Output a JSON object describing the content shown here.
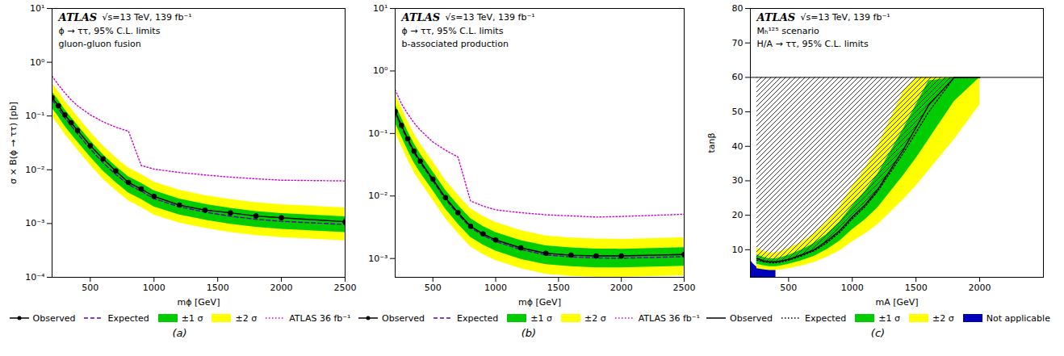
{
  "chart_data": [
    {
      "type": "line",
      "title": "(a)",
      "xlabel": "mϕ [GeV]",
      "ylabel": "σ × B(ϕ → ττ) [pb]",
      "annotations": [
        "ATLAS",
        "√s=13 TeV, 139 fb⁻¹",
        "ϕ → ττ, 95% C.L. limits",
        "gluon-gluon fusion"
      ],
      "log": "y",
      "legend": "bottom",
      "xlim": [
        200,
        2500
      ],
      "xticks": [
        500,
        1000,
        1500,
        2000,
        2500
      ],
      "ylim": [
        0.0001,
        10
      ],
      "yticks": [
        {
          "value": 0.0001,
          "label": "10⁻⁴"
        },
        {
          "value": 0.001,
          "label": "10⁻³"
        },
        {
          "value": 0.01,
          "label": "10⁻²"
        },
        {
          "value": 0.1,
          "label": "10⁻¹"
        },
        {
          "value": 1,
          "label": "10⁰"
        },
        {
          "value": 10,
          "label": "10¹"
        }
      ],
      "series": [
        {
          "name": "Observed",
          "type": "line",
          "color": "black",
          "line_style": "solid",
          "marker": "circle",
          "x": [
            200,
            250,
            300,
            350,
            400,
            500,
            600,
            700,
            800,
            900,
            1000,
            1200,
            1400,
            1600,
            1800,
            2000,
            2500
          ],
          "values": [
            0.22,
            0.155,
            0.105,
            0.075,
            0.054,
            0.028,
            0.016,
            0.0095,
            0.0058,
            0.0044,
            0.0032,
            0.0022,
            0.00178,
            0.00158,
            0.00138,
            0.00128,
            0.00108
          ]
        },
        {
          "name": "Expected",
          "type": "line",
          "color": "#6600AA",
          "line_style": "dashed",
          "x": [
            200,
            250,
            300,
            350,
            400,
            500,
            600,
            700,
            800,
            900,
            1000,
            1200,
            1400,
            1600,
            1800,
            2000,
            2500
          ],
          "values": [
            0.2,
            0.138,
            0.093,
            0.066,
            0.047,
            0.0245,
            0.0135,
            0.0082,
            0.0053,
            0.004,
            0.0029,
            0.00205,
            0.00163,
            0.00137,
            0.0012,
            0.0011,
            0.00096
          ]
        },
        {
          "name": "±1 σ",
          "type": "band",
          "color": "#00CC00",
          "x": [
            200,
            250,
            300,
            350,
            400,
            500,
            600,
            700,
            800,
            900,
            1000,
            1200,
            1400,
            1600,
            1800,
            2000,
            2500
          ],
          "lower": [
            0.14,
            0.097,
            0.065,
            0.046,
            0.033,
            0.0172,
            0.0095,
            0.0058,
            0.0037,
            0.0028,
            0.00205,
            0.00145,
            0.00116,
            0.00097,
            0.00085,
            0.00078,
            0.00068
          ],
          "upper": [
            0.285,
            0.196,
            0.132,
            0.094,
            0.067,
            0.0348,
            0.0192,
            0.0116,
            0.0074,
            0.0056,
            0.00406,
            0.00286,
            0.00228,
            0.00192,
            0.00168,
            0.00154,
            0.00134
          ]
        },
        {
          "name": "±2 σ",
          "type": "band",
          "color": "#FFFF00",
          "x": [
            200,
            250,
            300,
            350,
            400,
            500,
            600,
            700,
            800,
            900,
            1000,
            1200,
            1400,
            1600,
            1800,
            2000,
            2500
          ],
          "lower": [
            0.098,
            0.068,
            0.046,
            0.033,
            0.0234,
            0.0122,
            0.0067,
            0.0041,
            0.00264,
            0.00199,
            0.00145,
            0.00102,
            0.00082,
            0.00068,
            0.0006,
            0.00055,
            0.00048
          ],
          "upper": [
            0.41,
            0.283,
            0.19,
            0.136,
            0.097,
            0.0503,
            0.0277,
            0.0168,
            0.0108,
            0.0082,
            0.00591,
            0.00417,
            0.00332,
            0.0028,
            0.00245,
            0.00225,
            0.00196
          ]
        },
        {
          "name": "ATLAS 36 fb⁻¹",
          "type": "line",
          "color": "#CC00CC",
          "line_style": "dotted",
          "x": [
            200,
            250,
            300,
            350,
            400,
            500,
            600,
            700,
            800,
            900,
            1000,
            1200,
            1400,
            1600,
            1800,
            2000,
            2500
          ],
          "values": [
            0.55,
            0.38,
            0.27,
            0.2,
            0.155,
            0.105,
            0.078,
            0.062,
            0.052,
            0.012,
            0.0103,
            0.0089,
            0.008,
            0.0073,
            0.0068,
            0.0064,
            0.0062
          ]
        }
      ]
    },
    {
      "type": "line",
      "title": "(b)",
      "xlabel": "mϕ [GeV]",
      "annotations": [
        "ATLAS",
        "√s=13 TeV, 139 fb⁻¹",
        "ϕ → ττ, 95% C.L. limits",
        "b-associated production"
      ],
      "log": "y",
      "legend": "bottom",
      "xlim": [
        200,
        2500
      ],
      "xticks": [
        500,
        1000,
        1500,
        2000,
        2500
      ],
      "ylim": [
        0.0005,
        10
      ],
      "yticks": [
        {
          "value": 0.001,
          "label": "10⁻³"
        },
        {
          "value": 0.01,
          "label": "10⁻²"
        },
        {
          "value": 0.1,
          "label": "10⁻¹"
        },
        {
          "value": 1,
          "label": "10⁰"
        },
        {
          "value": 10,
          "label": "10¹"
        }
      ],
      "series": [
        {
          "name": "Observed",
          "type": "line",
          "color": "black",
          "line_style": "solid",
          "marker": "circle",
          "x": [
            200,
            250,
            300,
            350,
            400,
            500,
            600,
            700,
            800,
            900,
            1000,
            1200,
            1400,
            1600,
            1800,
            2000,
            2500
          ],
          "values": [
            0.225,
            0.135,
            0.082,
            0.052,
            0.036,
            0.0185,
            0.0094,
            0.0054,
            0.00328,
            0.00247,
            0.00198,
            0.00148,
            0.00121,
            0.00113,
            0.0011,
            0.0011,
            0.00116
          ]
        },
        {
          "name": "Expected",
          "type": "line",
          "color": "#6600AA",
          "line_style": "dashed",
          "x": [
            200,
            250,
            300,
            350,
            400,
            500,
            600,
            700,
            800,
            900,
            1000,
            1200,
            1400,
            1600,
            1800,
            2000,
            2500
          ],
          "values": [
            0.21,
            0.127,
            0.077,
            0.049,
            0.034,
            0.0175,
            0.0089,
            0.0051,
            0.00312,
            0.00234,
            0.00187,
            0.00139,
            0.00114,
            0.00106,
            0.00102,
            0.00101,
            0.00107
          ]
        },
        {
          "name": "±1 σ",
          "type": "band",
          "color": "#00CC00",
          "x": [
            200,
            250,
            300,
            350,
            400,
            500,
            600,
            700,
            800,
            900,
            1000,
            1200,
            1400,
            1600,
            1800,
            2000,
            2500
          ],
          "lower": [
            0.148,
            0.089,
            0.054,
            0.034,
            0.0236,
            0.0122,
            0.0062,
            0.00357,
            0.00218,
            0.00164,
            0.00131,
            0.00097,
            0.0008,
            0.00074,
            0.00071,
            0.00071,
            0.00075
          ],
          "upper": [
            0.295,
            0.178,
            0.108,
            0.069,
            0.047,
            0.0244,
            0.0124,
            0.00714,
            0.00435,
            0.00326,
            0.00261,
            0.00194,
            0.00159,
            0.00148,
            0.00142,
            0.00141,
            0.00149
          ]
        },
        {
          "name": "±2 σ",
          "type": "band",
          "color": "#FFFF00",
          "x": [
            200,
            250,
            300,
            350,
            400,
            500,
            600,
            700,
            800,
            900,
            1000,
            1200,
            1400,
            1600,
            1800,
            2000,
            2500
          ],
          "lower": [
            0.104,
            0.063,
            0.038,
            0.024,
            0.0167,
            0.0086,
            0.0044,
            0.00252,
            0.00154,
            0.00116,
            0.00093,
            0.00069,
            0.00056,
            0.00052,
            0.0005,
            0.0005,
            0.00053
          ],
          "upper": [
            0.427,
            0.257,
            0.156,
            0.099,
            0.068,
            0.0352,
            0.0179,
            0.0103,
            0.00628,
            0.00471,
            0.00377,
            0.0028,
            0.0023,
            0.00213,
            0.00205,
            0.00203,
            0.00215
          ]
        },
        {
          "name": "ATLAS 36 fb⁻¹",
          "type": "line",
          "color": "#CC00CC",
          "line_style": "dotted",
          "x": [
            200,
            250,
            300,
            350,
            400,
            500,
            600,
            700,
            800,
            900,
            1000,
            1200,
            1400,
            1600,
            1800,
            2000,
            2500
          ],
          "values": [
            0.5,
            0.3,
            0.205,
            0.148,
            0.113,
            0.073,
            0.054,
            0.042,
            0.0083,
            0.0069,
            0.006,
            0.0054,
            0.005,
            0.0048,
            0.0046,
            0.0047,
            0.0051
          ]
        }
      ]
    },
    {
      "type": "line",
      "title": "(c)",
      "xlabel": "mA [GeV]",
      "ylabel": "tanβ",
      "annotations": [
        "ATLAS",
        "√s=13 TeV, 139 fb⁻¹",
        "Mₕ¹²⁵ scenario",
        "H/A → ττ, 95% C.L. limits"
      ],
      "legend": "bottom",
      "xlim": [
        200,
        2500
      ],
      "xticks": [
        500,
        1000,
        1500,
        2000
      ],
      "ylim": [
        2,
        80
      ],
      "yticks": [
        10,
        20,
        30,
        40,
        50,
        60,
        70,
        80
      ],
      "hline": 60,
      "series": [
        {
          "name": "Observed",
          "type": "line",
          "color": "black",
          "line_style": "solid",
          "x": [
            250,
            300,
            350,
            400,
            450,
            500,
            600,
            700,
            800,
            900,
            1000,
            1100,
            1200,
            1400,
            1500,
            1600,
            1800,
            2000
          ],
          "values": [
            7.5,
            6.8,
            6.5,
            6.5,
            6.8,
            7.2,
            8.5,
            10.0,
            12.5,
            15.5,
            19.5,
            23.0,
            27.5,
            39.0,
            45.5,
            52.0,
            60.0,
            60.0
          ]
        },
        {
          "name": "Expected",
          "type": "line",
          "color": "black",
          "line_style": "dotted",
          "x": [
            250,
            300,
            350,
            400,
            450,
            500,
            600,
            700,
            800,
            900,
            1000,
            1100,
            1200,
            1400,
            1500,
            1600,
            1800,
            2000
          ],
          "values": [
            7.0,
            6.5,
            6.2,
            6.2,
            6.5,
            7.0,
            8.2,
            9.7,
            12.0,
            15.0,
            19.0,
            22.5,
            27.0,
            38.0,
            44.0,
            50.0,
            60.0,
            60.0
          ]
        },
        {
          "name": "±1 σ",
          "type": "band",
          "color": "#00CC00",
          "x": [
            250,
            300,
            350,
            400,
            450,
            500,
            600,
            700,
            800,
            900,
            1000,
            1100,
            1200,
            1400,
            1500,
            1600,
            1800,
            2000
          ],
          "lower": [
            5.8,
            5.4,
            5.1,
            5.1,
            5.4,
            5.8,
            6.8,
            8.1,
            10.0,
            12.5,
            15.8,
            18.7,
            22.2,
            31.5,
            36.5,
            42.0,
            53.0,
            60.0
          ],
          "upper": [
            8.5,
            7.8,
            7.4,
            7.4,
            7.8,
            8.4,
            9.9,
            11.8,
            14.5,
            18.0,
            22.7,
            26.9,
            32.0,
            45.0,
            52.0,
            59.0,
            60.0,
            60.0
          ]
        },
        {
          "name": "±2 σ",
          "type": "band",
          "color": "#FFFF00",
          "x": [
            250,
            300,
            350,
            400,
            450,
            500,
            600,
            700,
            800,
            900,
            1000,
            1100,
            1200,
            1400,
            1500,
            1600,
            1800,
            2000
          ],
          "lower": [
            4.5,
            4.2,
            4.0,
            4.0,
            4.2,
            4.5,
            5.3,
            6.3,
            7.8,
            9.7,
            12.3,
            14.6,
            17.3,
            24.5,
            28.5,
            33.0,
            42.0,
            52.0
          ],
          "upper": [
            10.5,
            9.6,
            9.1,
            9.1,
            9.6,
            10.4,
            12.2,
            14.6,
            18.0,
            22.5,
            28.3,
            33.5,
            40.0,
            56.0,
            60.0,
            60.0,
            60.0,
            60.0
          ]
        },
        {
          "name": "Not applicable",
          "type": "band",
          "color": "#0000BB",
          "x": [
            200,
            220,
            250,
            300,
            350,
            400
          ],
          "lower": [
            2.0,
            2.0,
            2.0,
            2.0,
            2.0,
            2.0
          ],
          "upper": [
            7.0,
            6.0,
            5.0,
            4.8,
            4.5,
            4.5
          ]
        }
      ]
    }
  ]
}
